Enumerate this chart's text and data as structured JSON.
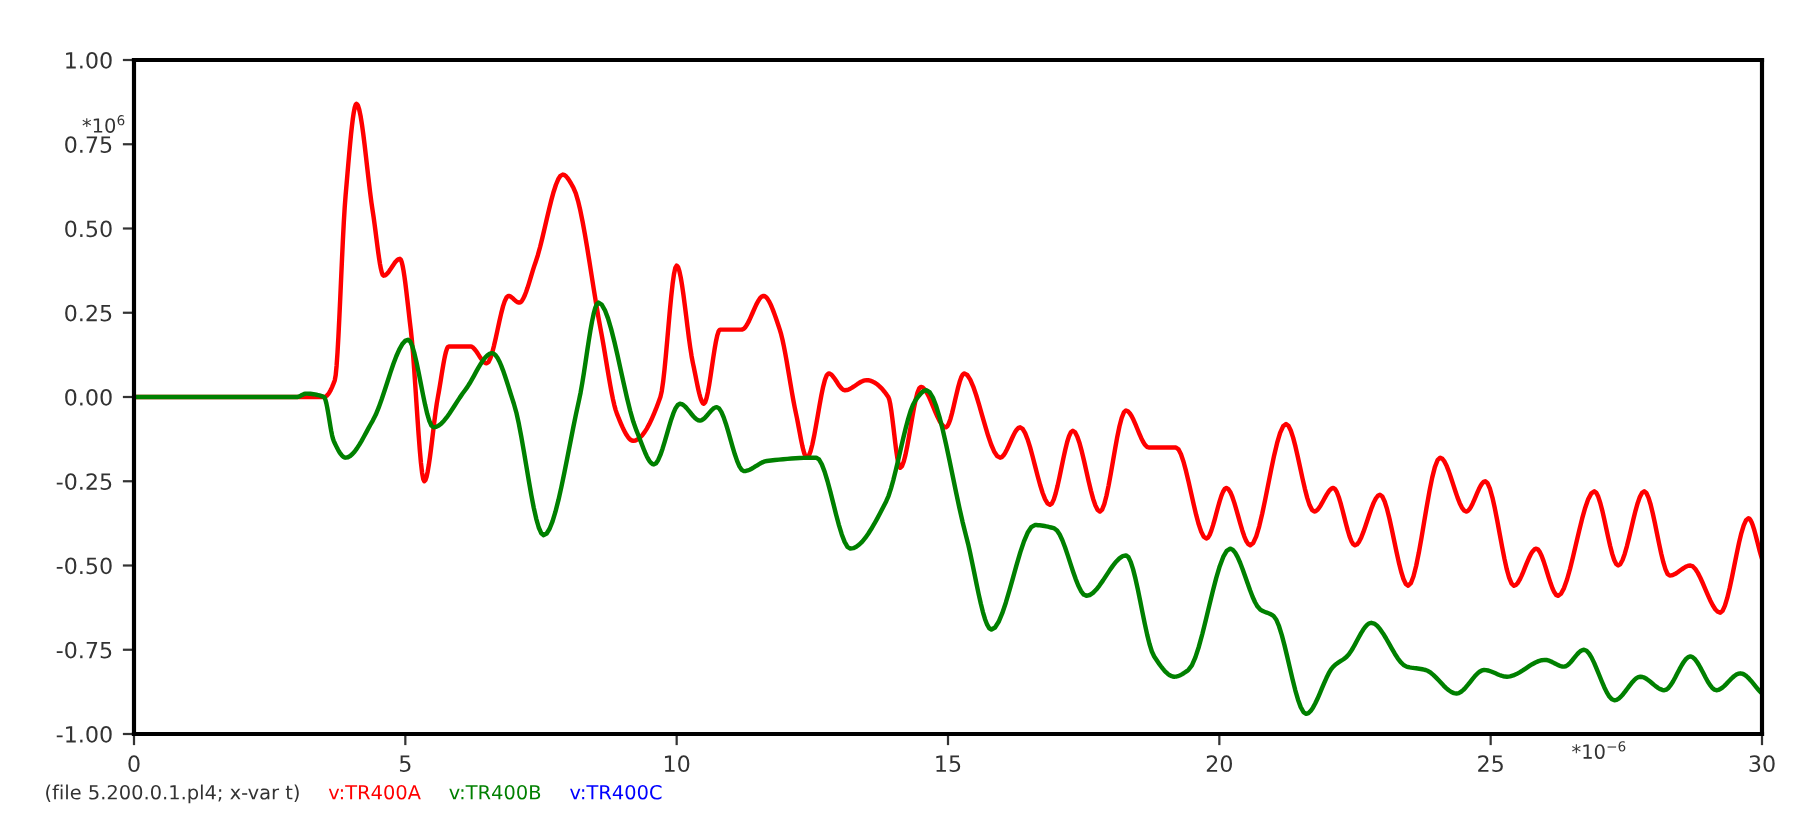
{
  "chart_data": {
    "type": "line",
    "xlabel": "*10$^{−6}$",
    "ylabel": "*10$^{6}$",
    "xlim": [
      0,
      30
    ],
    "ylim": [
      -1,
      1
    ],
    "xticks": [
      0,
      5,
      10,
      15,
      20,
      25,
      30
    ],
    "yticks": [
      {
        "value": -1,
        "label": "-1.00"
      },
      {
        "value": -0.75,
        "label": "-0.75"
      },
      {
        "value": -0.5,
        "label": "-0.50"
      },
      {
        "value": -0.25,
        "label": "-0.25"
      },
      {
        "value": 0,
        "label": "0.00"
      },
      {
        "value": 0.25,
        "label": "0.25"
      },
      {
        "value": 0.5,
        "label": "0.50"
      },
      {
        "value": 0.75,
        "label": "0.75"
      },
      {
        "value": 1,
        "label": "1.00"
      }
    ],
    "grid": false,
    "legend": "bottom left",
    "line_style": "solid",
    "marker": "none",
    "annotations": [
      "(file 5.200.0.1.pl4; x-var t)"
    ],
    "series": [
      {
        "name": "v:TR400A",
        "color": "#ff0000",
        "x": [
          0,
          3.3,
          3.5,
          3.7,
          3.9,
          4.1,
          4.4,
          4.6,
          4.9,
          5.1,
          5.35,
          5.6,
          5.8,
          6.2,
          6.5,
          6.9,
          7.1,
          7.4,
          7.9,
          8.1,
          8.6,
          8.9,
          9.2,
          9.7,
          10,
          10.3,
          10.5,
          10.8,
          11.2,
          11.6,
          11.9,
          12.2,
          12.4,
          12.8,
          13.1,
          13.5,
          13.9,
          14.12,
          14.5,
          14.96,
          15.3,
          15.96,
          16.33,
          16.88,
          17.3,
          17.8,
          18.28,
          18.7,
          19.2,
          19.76,
          20.13,
          20.57,
          21.23,
          21.75,
          22.1,
          22.5,
          22.96,
          23.48,
          24.07,
          24.55,
          24.9,
          25.43,
          25.84,
          26.24,
          26.91,
          27.35,
          27.83,
          28.3,
          28.68,
          29.23,
          29.75,
          30
        ],
        "values": [
          0,
          0,
          0,
          0.05,
          0.6,
          0.87,
          0.55,
          0.36,
          0.41,
          0.2,
          -0.25,
          0,
          0.15,
          0.15,
          0.1,
          0.3,
          0.28,
          0.4,
          0.66,
          0.62,
          0.2,
          -0.05,
          -0.13,
          0,
          0.39,
          0.1,
          -0.02,
          0.2,
          0.2,
          0.3,
          0.2,
          -0.05,
          -0.18,
          0.07,
          0.02,
          0.05,
          0,
          -0.21,
          0.03,
          -0.09,
          0.07,
          -0.18,
          -0.09,
          -0.32,
          -0.1,
          -0.34,
          -0.04,
          -0.15,
          -0.15,
          -0.42,
          -0.27,
          -0.44,
          -0.08,
          -0.34,
          -0.27,
          -0.44,
          -0.29,
          -0.56,
          -0.18,
          -0.34,
          -0.25,
          -0.56,
          -0.45,
          -0.59,
          -0.28,
          -0.5,
          -0.28,
          -0.53,
          -0.5,
          -0.64,
          -0.36,
          -0.48
        ]
      },
      {
        "name": "v:TR400B",
        "color": "#008000",
        "x": [
          0,
          3.0,
          3.17,
          3.5,
          3.68,
          3.9,
          4.4,
          5.05,
          5.52,
          6.1,
          6.6,
          7.0,
          7.55,
          8.2,
          8.56,
          9.26,
          9.58,
          10.06,
          10.43,
          10.74,
          11.24,
          11.66,
          12.57,
          13.2,
          13.86,
          14.4,
          14.6,
          15.33,
          15.8,
          16.6,
          16.96,
          17.55,
          18.28,
          18.8,
          19.17,
          19.43,
          20.2,
          20.75,
          21.0,
          21.6,
          22.1,
          22.35,
          22.8,
          23.45,
          23.8,
          24.37,
          24.88,
          25.3,
          26.0,
          26.35,
          26.72,
          27.28,
          27.76,
          28.2,
          28.68,
          29.16,
          29.6,
          30
        ],
        "values": [
          0,
          0,
          0.01,
          0,
          -0.13,
          -0.18,
          -0.07,
          0.17,
          -0.09,
          0.02,
          0.13,
          -0.02,
          -0.41,
          -0.01,
          0.28,
          -0.1,
          -0.2,
          -0.02,
          -0.07,
          -0.03,
          -0.22,
          -0.19,
          -0.18,
          -0.45,
          -0.31,
          -0.01,
          0.02,
          -0.41,
          -0.69,
          -0.38,
          -0.39,
          -0.59,
          -0.47,
          -0.77,
          -0.83,
          -0.81,
          -0.45,
          -0.63,
          -0.65,
          -0.94,
          -0.8,
          -0.77,
          -0.67,
          -0.8,
          -0.81,
          -0.88,
          -0.81,
          -0.83,
          -0.78,
          -0.8,
          -0.75,
          -0.9,
          -0.83,
          -0.87,
          -0.77,
          -0.87,
          -0.82,
          -0.88
        ]
      },
      {
        "name": "v:TR400C",
        "color": "#0000ff"
      }
    ]
  }
}
